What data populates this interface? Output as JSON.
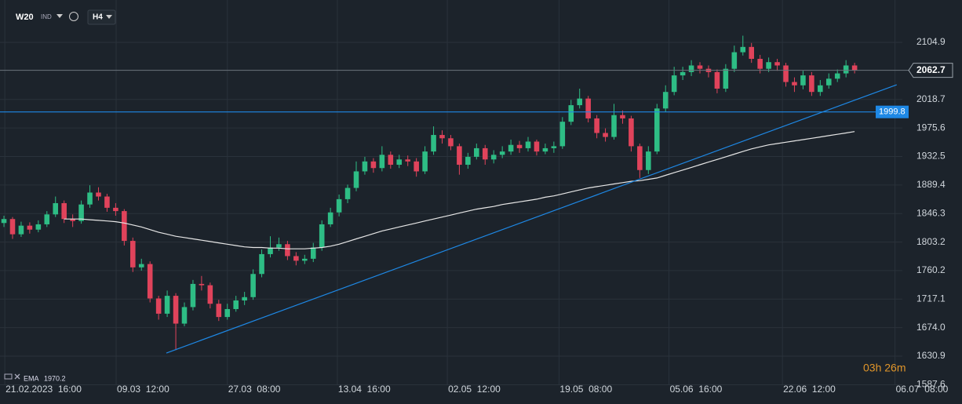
{
  "toolbar": {
    "symbol": "W20",
    "market": "IND",
    "timeframe": "H4"
  },
  "indicator": {
    "name": "EMA",
    "value": 1970.2
  },
  "countdown": "03h 26m",
  "chart_data": {
    "type": "candlestick",
    "up_color": "#2ebd85",
    "down_color": "#e0435b",
    "open": [
      1832,
      1838,
      1815,
      1828,
      1822,
      1830,
      1845,
      1862,
      1838,
      1835,
      1860,
      1878,
      1872,
      1855,
      1850,
      1805,
      1765,
      1770,
      1718,
      1695,
      1722,
      1680,
      1705,
      1740,
      1738,
      1710,
      1690,
      1702,
      1715,
      1720,
      1755,
      1785,
      1795,
      1800,
      1782,
      1775,
      1778,
      1795,
      1830,
      1848,
      1868,
      1885,
      1910,
      1925,
      1915,
      1935,
      1920,
      1928,
      1925,
      1910,
      1940,
      1965,
      1960,
      1948,
      1920,
      1932,
      1945,
      1928,
      1935,
      1940,
      1950,
      1945,
      1955,
      1940,
      1945,
      1948,
      1985,
      2010,
      2020,
      1990,
      1968,
      1962,
      1995,
      1990,
      1948,
      1912,
      1940,
      2005,
      2030,
      2055,
      2060,
      2070,
      2065,
      2060,
      2035,
      2065,
      2090,
      2098,
      2080,
      2065,
      2075,
      2070,
      2045,
      2040,
      2055,
      2030,
      2040,
      2050,
      2058,
      2070
    ],
    "high": [
      1843,
      1841,
      1834,
      1833,
      1836,
      1850,
      1872,
      1866,
      1845,
      1866,
      1889,
      1886,
      1876,
      1862,
      1853,
      1810,
      1778,
      1774,
      1722,
      1730,
      1726,
      1712,
      1746,
      1752,
      1742,
      1716,
      1710,
      1722,
      1728,
      1762,
      1792,
      1812,
      1810,
      1805,
      1788,
      1784,
      1802,
      1836,
      1855,
      1875,
      1890,
      1925,
      1932,
      1930,
      1948,
      1940,
      1935,
      1934,
      1930,
      1948,
      1978,
      1972,
      1965,
      1952,
      1938,
      1952,
      1950,
      1942,
      1948,
      1958,
      1956,
      1962,
      1958,
      1952,
      1955,
      1992,
      2018,
      2035,
      2024,
      1995,
      1975,
      2012,
      2002,
      1994,
      1952,
      1948,
      2012,
      2040,
      2068,
      2068,
      2078,
      2075,
      2070,
      2064,
      2072,
      2100,
      2115,
      2104,
      2086,
      2082,
      2080,
      2074,
      2052,
      2062,
      2060,
      2048,
      2058,
      2064,
      2078,
      2074
    ],
    "low": [
      1826,
      1808,
      1811,
      1816,
      1818,
      1826,
      1841,
      1832,
      1826,
      1831,
      1855,
      1866,
      1849,
      1843,
      1798,
      1758,
      1760,
      1712,
      1686,
      1690,
      1640,
      1676,
      1700,
      1730,
      1703,
      1684,
      1686,
      1698,
      1708,
      1716,
      1750,
      1780,
      1790,
      1776,
      1768,
      1770,
      1773,
      1790,
      1826,
      1842,
      1862,
      1880,
      1905,
      1908,
      1910,
      1914,
      1915,
      1918,
      1902,
      1906,
      1935,
      1952,
      1942,
      1905,
      1914,
      1928,
      1920,
      1922,
      1930,
      1935,
      1938,
      1940,
      1934,
      1936,
      1938,
      1944,
      1980,
      2005,
      1984,
      1960,
      1955,
      1958,
      1982,
      1940,
      1900,
      1906,
      1936,
      2000,
      2025,
      2048,
      2054,
      2058,
      2052,
      2028,
      2030,
      2060,
      2085,
      2074,
      2058,
      2060,
      2062,
      2038,
      2030,
      2034,
      2024,
      2024,
      2035,
      2045,
      2052,
      2058
    ],
    "close": [
      1838,
      1815,
      1828,
      1822,
      1830,
      1845,
      1862,
      1838,
      1835,
      1860,
      1878,
      1872,
      1855,
      1850,
      1805,
      1765,
      1770,
      1718,
      1695,
      1722,
      1680,
      1705,
      1740,
      1738,
      1710,
      1690,
      1702,
      1715,
      1720,
      1755,
      1785,
      1795,
      1800,
      1782,
      1775,
      1778,
      1795,
      1830,
      1848,
      1868,
      1885,
      1910,
      1925,
      1915,
      1935,
      1920,
      1928,
      1925,
      1910,
      1940,
      1965,
      1960,
      1948,
      1920,
      1932,
      1945,
      1928,
      1935,
      1940,
      1950,
      1945,
      1955,
      1940,
      1945,
      1948,
      1985,
      2010,
      2020,
      1990,
      1968,
      1962,
      1995,
      1990,
      1948,
      1912,
      1940,
      2005,
      2030,
      2055,
      2060,
      2070,
      2065,
      2060,
      2035,
      2065,
      2090,
      2098,
      2080,
      2065,
      2075,
      2070,
      2045,
      2040,
      2055,
      2030,
      2040,
      2050,
      2058,
      2070,
      2062.7
    ],
    "ema": {
      "color": "#e6e6e6",
      "values": [
        null,
        null,
        null,
        null,
        null,
        null,
        null,
        1838,
        1838,
        1838,
        1837,
        1836,
        1835,
        1834,
        1832,
        1829,
        1826,
        1822,
        1818,
        1815,
        1812,
        1810,
        1808,
        1806,
        1804,
        1802,
        1800,
        1798,
        1796,
        1795,
        1795,
        1794,
        1794,
        1793,
        1793,
        1793,
        1794,
        1795,
        1797,
        1800,
        1804,
        1808,
        1812,
        1816,
        1820,
        1823,
        1826,
        1829,
        1832,
        1835,
        1838,
        1841,
        1844,
        1847,
        1850,
        1853,
        1855,
        1857,
        1860,
        1862,
        1864,
        1866,
        1868,
        1871,
        1873,
        1876,
        1879,
        1882,
        1885,
        1887,
        1889,
        1891,
        1893,
        1895,
        1896,
        1898,
        1900,
        1904,
        1908,
        1912,
        1916,
        1920,
        1924,
        1928,
        1932,
        1936,
        1940,
        1944,
        1947,
        1950,
        1952,
        1954,
        1956,
        1958,
        1960,
        1962,
        1964,
        1966,
        1968,
        1970.2
      ]
    },
    "trend_line": {
      "color": "#1e88e5",
      "x": [
        18.9,
        103.9
      ],
      "y": [
        1635.6,
        2040.9
      ]
    },
    "horizontal_line": {
      "color": "#1e88e5",
      "value": 1999.8
    },
    "last_price": 2062.7,
    "xlim": [
      -0.46,
      111.5
    ],
    "ylim": [
      1588.2,
      2168.9
    ],
    "grid": true,
    "yticks": [
      1587.6,
      1630.9,
      {
        "value": 1674,
        "label": "1674.0"
      },
      1717.1,
      1760.2,
      1803.2,
      1846.3,
      1889.4,
      1932.5,
      1975.6,
      2018.7,
      2104.9
    ],
    "xticks": [
      {
        "value": 0.1,
        "label": "21.02.2023  16:00"
      },
      {
        "value": 13.06,
        "label": "09.03  12:00"
      },
      {
        "value": 26.0,
        "label": "27.03  08:00"
      },
      {
        "value": 38.8,
        "label": "13.04  16:00"
      },
      {
        "value": 51.6,
        "label": "02.05  12:00"
      },
      {
        "value": 64.6,
        "label": "19.05  08:00"
      },
      {
        "value": 77.4,
        "label": "05.06  16:00"
      },
      {
        "value": 90.6,
        "label": "22.06  12:00"
      },
      {
        "value": 103.7,
        "label": "06.07  08:00"
      }
    ]
  }
}
